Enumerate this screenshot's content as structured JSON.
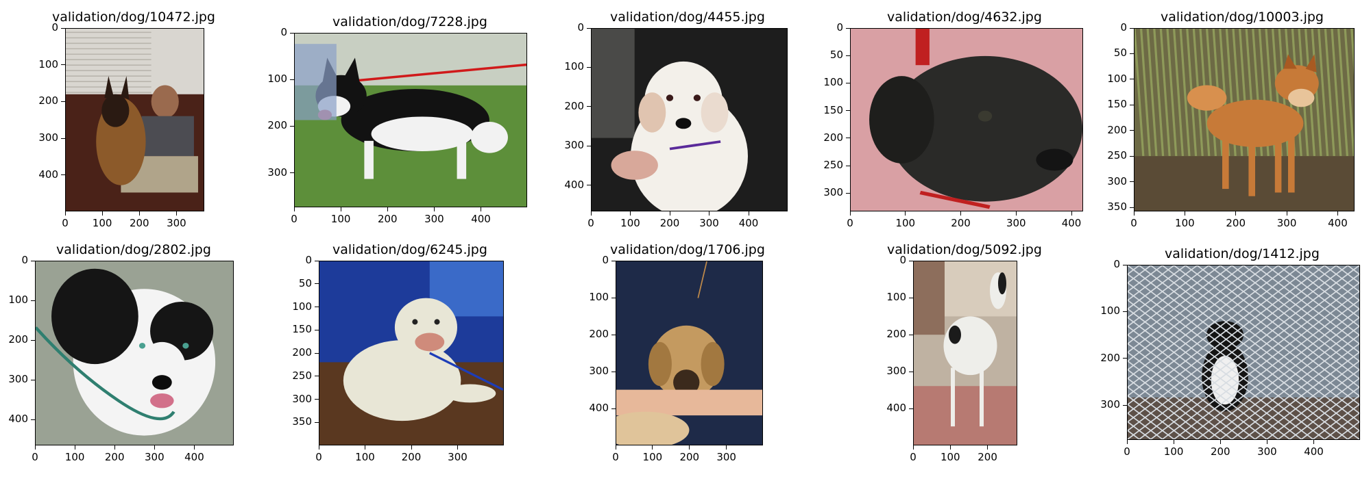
{
  "panels": [
    {
      "title": "validation/dog/10472.jpg",
      "image_w": 375,
      "image_h": 499,
      "x_ticks": [
        0,
        100,
        200,
        300
      ],
      "y_ticks": [
        0,
        100,
        200,
        300,
        400
      ],
      "palette": {
        "bg": "#6f6660",
        "wall": "#d9d6d0",
        "couch": "#4a2218",
        "dog": "#8c5a2a",
        "dark": "#2a1a12",
        "accent": "#bba08a"
      },
      "subject": "german-shepherd-on-sofa-with-man"
    },
    {
      "title": "validation/dog/7228.jpg",
      "image_w": 499,
      "image_h": 374,
      "x_ticks": [
        0,
        100,
        200,
        300,
        400
      ],
      "y_ticks": [
        0,
        100,
        200,
        300
      ],
      "palette": {
        "bg": "#5d8f3a",
        "wall": "#c8cfc2",
        "couch": "#3f6e24",
        "dog": "#121212",
        "dark": "#0b0b0b",
        "accent": "#f2f2f2"
      },
      "subject": "black-and-white-husky-on-grass"
    },
    {
      "title": "validation/dog/4455.jpg",
      "image_w": 499,
      "image_h": 467,
      "x_ticks": [
        0,
        100,
        200,
        300,
        400
      ],
      "y_ticks": [
        0,
        100,
        200,
        300,
        400
      ],
      "palette": {
        "bg": "#1d1d1d",
        "wall": "#3a3a3a",
        "couch": "#262626",
        "dog": "#f3f0ea",
        "dark": "#0d0d0d",
        "accent": "#d8a89a"
      },
      "subject": "fluffy-white-dog"
    },
    {
      "title": "validation/dog/4632.jpg",
      "image_w": 421,
      "image_h": 333,
      "x_ticks": [
        0,
        100,
        200,
        300,
        400
      ],
      "y_ticks": [
        0,
        50,
        100,
        150,
        200,
        250,
        300
      ],
      "palette": {
        "bg": "#d9a0a4",
        "wall": "#e6b7b9",
        "couch": "#c9868c",
        "dog": "#2a2a28",
        "dark": "#141414",
        "accent": "#c02020"
      },
      "subject": "black-puppy-close-up"
    },
    {
      "title": "validation/dog/10003.jpg",
      "image_w": 433,
      "image_h": 358,
      "x_ticks": [
        0,
        100,
        200,
        300,
        400
      ],
      "y_ticks": [
        0,
        50,
        100,
        150,
        200,
        250,
        300,
        350
      ],
      "palette": {
        "bg": "#6d6a45",
        "wall": "#8e9a5a",
        "couch": "#5a4b36",
        "dog": "#c77a38",
        "dark": "#3a2c20",
        "accent": "#e8c49a"
      },
      "subject": "golden-dog-in-tall-grass"
    },
    {
      "title": "validation/dog/2802.jpg",
      "image_w": 499,
      "image_h": 465,
      "x_ticks": [
        0,
        100,
        200,
        300,
        400
      ],
      "y_ticks": [
        0,
        100,
        200,
        300,
        400
      ],
      "palette": {
        "bg": "#9aa294",
        "wall": "#b3bab0",
        "couch": "#8c9486",
        "dog": "#151515",
        "dark": "#0c0c0c",
        "accent": "#f4f4f4"
      },
      "subject": "black-and-white-pit-bull-with-leash"
    },
    {
      "title": "validation/dog/6245.jpg",
      "image_w": 400,
      "image_h": 400,
      "x_ticks": [
        0,
        100,
        200,
        300
      ],
      "y_ticks": [
        0,
        50,
        100,
        150,
        200,
        250,
        300,
        350
      ],
      "palette": {
        "bg": "#1d3b9a",
        "wall": "#3d63c7",
        "couch": "#5a3820",
        "dog": "#e8e6d6",
        "dark": "#2a1d16",
        "accent": "#cf8b7b"
      },
      "subject": "white-bulldog-lying-down"
    },
    {
      "title": "validation/dog/1706.jpg",
      "image_w": 399,
      "image_h": 499,
      "x_ticks": [
        0,
        100,
        200,
        300
      ],
      "y_ticks": [
        0,
        100,
        200,
        300,
        400
      ],
      "palette": {
        "bg": "#1e2a48",
        "wall": "#24325a",
        "couch": "#1a2440",
        "dog": "#c49a60",
        "dark": "#3b2a1c",
        "accent": "#e7b89a"
      },
      "subject": "tan-puppy-held-in-arms"
    },
    {
      "title": "validation/dog/5092.jpg",
      "image_w": 280,
      "image_h": 499,
      "x_ticks": [
        0,
        100,
        200
      ],
      "y_ticks": [
        0,
        100,
        200,
        300,
        400
      ],
      "palette": {
        "bg": "#bfb2a2",
        "wall": "#d8ccbc",
        "couch": "#b77a72",
        "dog": "#eeeeea",
        "dark": "#1b1b1b",
        "accent": "#8d6e5c"
      },
      "subject": "white-great-dane-standing"
    },
    {
      "title": "validation/dog/1412.jpg",
      "image_w": 499,
      "image_h": 374,
      "x_ticks": [
        0,
        100,
        200,
        300,
        400
      ],
      "y_ticks": [
        0,
        100,
        200,
        300
      ],
      "palette": {
        "bg": "#7c8894",
        "wall": "#a3aeb8",
        "couch": "#5d5048",
        "dog": "#141414",
        "dark": "#0b0b0b",
        "accent": "#f0f0f0"
      },
      "subject": "black-and-white-dog-behind-chain-link-fence"
    }
  ]
}
